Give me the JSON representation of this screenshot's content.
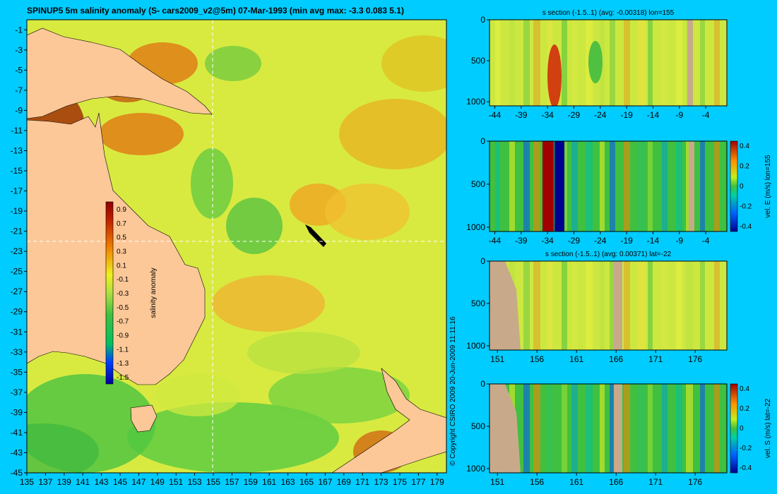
{
  "chart_data": [
    {
      "type": "heatmap",
      "id": "map",
      "title": "SPINUP5 5m salinity anomaly  (S- cars2009_v2@5m) 07-Mar-1993  (min avg max: -3.3 0.083 5.1)",
      "x_ticks": [
        "135",
        "137",
        "139",
        "141",
        "143",
        "145",
        "147",
        "149",
        "151",
        "153",
        "155",
        "157",
        "159",
        "161",
        "163",
        "165",
        "167",
        "169",
        "171",
        "173",
        "175",
        "177",
        "179"
      ],
      "y_ticks": [
        "-1",
        "-3",
        "-5",
        "-7",
        "-9",
        "-11",
        "-13",
        "-15",
        "-17",
        "-19",
        "-21",
        "-23",
        "-25",
        "-27",
        "-29",
        "-31",
        "-33",
        "-35",
        "-37",
        "-39",
        "-41",
        "-43",
        "-45"
      ],
      "xlim": [
        135,
        180
      ],
      "ylim": [
        -45,
        0
      ],
      "section_lon": 155,
      "section_lat": -22,
      "colorbar": {
        "label": "salinity anomaly",
        "ticks": [
          "0.9",
          "0.7",
          "0.5",
          "0.3",
          "0.1",
          "-0.1",
          "-0.3",
          "-0.5",
          "-0.7",
          "-0.9",
          "-1.1",
          "-1.3",
          "-1.5"
        ],
        "range": [
          -1.6,
          1.0
        ]
      }
    },
    {
      "type": "heatmap",
      "id": "s_lon",
      "title": "s section (-1.5..1) (avg: -0.00318) lon=155",
      "x_ticks": [
        "-44",
        "-39",
        "-34",
        "-29",
        "-24",
        "-19",
        "-14",
        "-9",
        "-4"
      ],
      "y_ticks": [
        "0",
        "500",
        "1000"
      ],
      "xlim": [
        -45,
        0
      ],
      "ylim": [
        1050,
        0
      ]
    },
    {
      "type": "heatmap",
      "id": "v_lon",
      "title": "",
      "x_ticks": [
        "-44",
        "-39",
        "-34",
        "-29",
        "-24",
        "-19",
        "-14",
        "-9",
        "-4"
      ],
      "y_ticks": [
        "0",
        "500",
        "1000"
      ],
      "xlim": [
        -45,
        0
      ],
      "ylim": [
        1050,
        0
      ],
      "colorbar": {
        "label": "vel. E (m/s) lon=155",
        "ticks": [
          "0.4",
          "0.2",
          "0",
          "-0.2",
          "-0.4"
        ],
        "range": [
          -0.45,
          0.45
        ]
      }
    },
    {
      "type": "heatmap",
      "id": "s_lat",
      "title": "s section (-1.5..1) (avg: 0.00371) lat=-22",
      "x_ticks": [
        "151",
        "156",
        "161",
        "166",
        "171",
        "176"
      ],
      "y_ticks": [
        "0",
        "500",
        "1000"
      ],
      "xlim": [
        150,
        180
      ],
      "ylim": [
        1050,
        0
      ]
    },
    {
      "type": "heatmap",
      "id": "v_lat",
      "title": "",
      "x_ticks": [
        "151",
        "156",
        "161",
        "166",
        "171",
        "176"
      ],
      "y_ticks": [
        "0",
        "500",
        "1000"
      ],
      "xlim": [
        150,
        180
      ],
      "ylim": [
        1050,
        0
      ],
      "colorbar": {
        "label": "vel. S (m/s) lat=-22",
        "ticks": [
          "0.4",
          "0.2",
          "0",
          "-0.2",
          "-0.4"
        ],
        "range": [
          -0.45,
          0.45
        ]
      }
    }
  ],
  "copyright": "© Copyright CSIRO 2009   20-Jun-2009 11:11:16",
  "colors": {
    "background": "#00ccff",
    "land": "#fcc898",
    "section_land": "#c8aa8a"
  }
}
